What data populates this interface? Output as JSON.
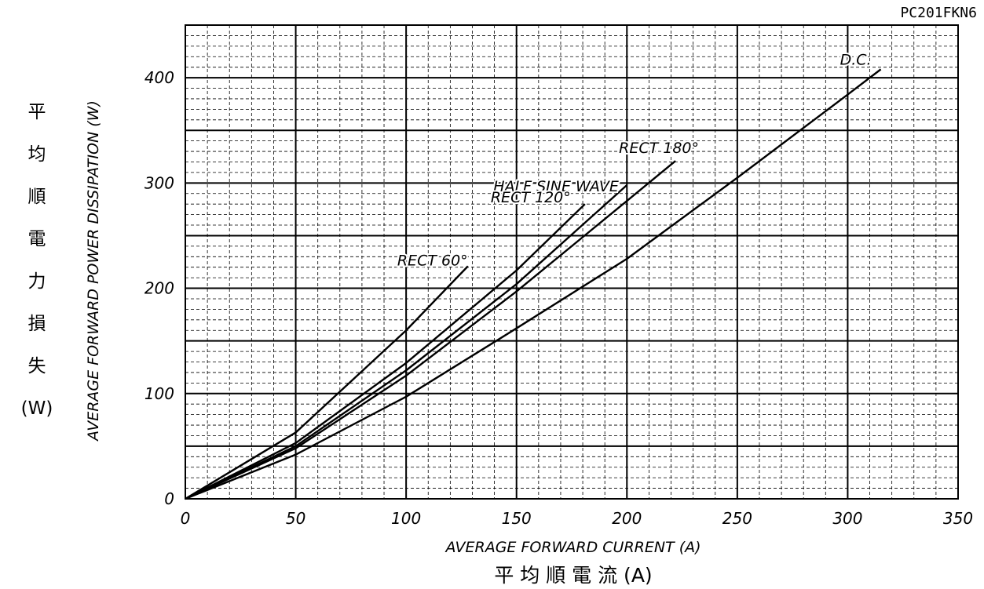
{
  "chart_data": {
    "type": "line",
    "model": "PC201FKN6",
    "xlabel": "AVERAGE FORWARD CURRENT (A)",
    "xlabel_jp": "平 均 順 電 流 (A)",
    "ylabel": "AVERAGE FORWARD POWER DISSIPATION (W)",
    "ylabel_jp": [
      "平",
      "均",
      "順",
      "電",
      "力",
      "損",
      "失",
      "(W)"
    ],
    "xlim": [
      0,
      350
    ],
    "ylim": [
      0,
      450
    ],
    "x_ticks": [
      "0",
      "50",
      "100",
      "150",
      "200",
      "250",
      "300",
      "350"
    ],
    "y_ticks": [
      "0",
      "100",
      "200",
      "300",
      "400"
    ],
    "grid": true,
    "series": [
      {
        "name": "D.C.",
        "x": [
          0,
          50,
          100,
          150,
          200,
          250,
          300,
          315
        ],
        "y": [
          0,
          42,
          97,
          162,
          228,
          305,
          384,
          408
        ]
      },
      {
        "name": "RECT 180°",
        "x": [
          0,
          50,
          100,
          150,
          200,
          222
        ],
        "y": [
          0,
          48,
          117,
          197,
          283,
          321
        ]
      },
      {
        "name": "HALF SINE WAVE",
        "x": [
          0,
          50,
          100,
          150,
          200
        ],
        "y": [
          0,
          50,
          122,
          204,
          298
        ]
      },
      {
        "name": "RECT 120°",
        "x": [
          0,
          50,
          100,
          150,
          181
        ],
        "y": [
          0,
          53,
          129,
          217,
          280
        ]
      },
      {
        "name": "RECT 60°",
        "x": [
          0,
          50,
          100,
          128
        ],
        "y": [
          0,
          63,
          160,
          221
        ]
      }
    ]
  }
}
